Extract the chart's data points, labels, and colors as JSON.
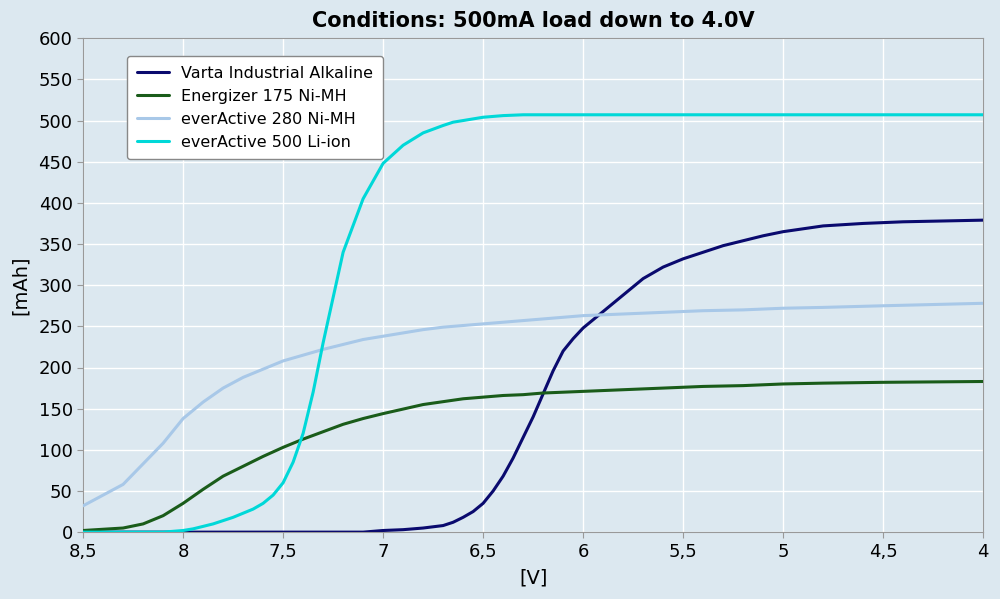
{
  "title": "Conditions: 500mA load down to 4.0V",
  "xlabel": "[V]",
  "ylabel": "[mAh]",
  "xlim": [
    8.5,
    4.0
  ],
  "ylim": [
    0,
    600
  ],
  "yticks": [
    0,
    50,
    100,
    150,
    200,
    250,
    300,
    350,
    400,
    450,
    500,
    550,
    600
  ],
  "xticks": [
    8.5,
    8.0,
    7.5,
    7.0,
    6.5,
    6.0,
    5.5,
    5.0,
    4.5,
    4.0
  ],
  "xtick_labels": [
    "8,5",
    "8",
    "7,5",
    "7",
    "6,5",
    "6",
    "5,5",
    "5",
    "4,5",
    "4"
  ],
  "background_color": "#dce8f0",
  "grid_color": "#ffffff",
  "series": [
    {
      "label": "Varta Industrial Alkaline",
      "color": "#0a0a6e",
      "linewidth": 2.2,
      "x": [
        8.5,
        8.4,
        8.3,
        8.2,
        8.1,
        8.05,
        8.0,
        7.95,
        7.9,
        7.85,
        7.8,
        7.7,
        7.6,
        7.5,
        7.4,
        7.3,
        7.2,
        7.1,
        7.0,
        6.9,
        6.8,
        6.7,
        6.65,
        6.6,
        6.55,
        6.5,
        6.45,
        6.4,
        6.35,
        6.3,
        6.25,
        6.2,
        6.15,
        6.1,
        6.05,
        6.0,
        5.9,
        5.8,
        5.7,
        5.6,
        5.5,
        5.3,
        5.1,
        5.0,
        4.8,
        4.6,
        4.4,
        4.2,
        4.0
      ],
      "y": [
        0,
        0,
        0,
        0,
        0,
        0,
        0,
        0,
        0,
        0,
        0,
        0,
        0,
        0,
        0,
        0,
        0,
        0,
        2,
        3,
        5,
        8,
        12,
        18,
        25,
        35,
        50,
        68,
        90,
        115,
        140,
        168,
        196,
        220,
        235,
        248,
        268,
        288,
        308,
        322,
        332,
        348,
        360,
        365,
        372,
        375,
        377,
        378,
        379
      ]
    },
    {
      "label": "Energizer 175 Ni-MH",
      "color": "#1a5c1a",
      "linewidth": 2.2,
      "x": [
        8.5,
        8.3,
        8.2,
        8.1,
        8.0,
        7.9,
        7.8,
        7.7,
        7.6,
        7.5,
        7.4,
        7.3,
        7.2,
        7.1,
        7.0,
        6.8,
        6.6,
        6.5,
        6.4,
        6.3,
        6.2,
        6.1,
        6.0,
        5.8,
        5.6,
        5.4,
        5.2,
        5.0,
        4.8,
        4.5,
        4.0
      ],
      "y": [
        2,
        5,
        10,
        20,
        35,
        52,
        68,
        80,
        92,
        103,
        113,
        122,
        131,
        138,
        144,
        155,
        162,
        164,
        166,
        167,
        169,
        170,
        171,
        173,
        175,
        177,
        178,
        180,
        181,
        182,
        183
      ]
    },
    {
      "label": "everActive 280 Ni-MH",
      "color": "#a8c8e8",
      "linewidth": 2.2,
      "x": [
        8.5,
        8.3,
        8.1,
        8.0,
        7.9,
        7.8,
        7.7,
        7.6,
        7.5,
        7.4,
        7.3,
        7.2,
        7.1,
        7.0,
        6.9,
        6.8,
        6.7,
        6.6,
        6.5,
        6.4,
        6.3,
        6.2,
        6.1,
        6.0,
        5.8,
        5.6,
        5.4,
        5.2,
        5.0,
        4.8,
        4.5,
        4.0
      ],
      "y": [
        32,
        58,
        108,
        138,
        158,
        175,
        188,
        198,
        208,
        215,
        222,
        228,
        234,
        238,
        242,
        246,
        249,
        251,
        253,
        255,
        257,
        259,
        261,
        263,
        265,
        267,
        269,
        270,
        272,
        273,
        275,
        278
      ]
    },
    {
      "label": "everActive 500 Li-ion",
      "color": "#00d8d8",
      "linewidth": 2.2,
      "x": [
        8.5,
        8.3,
        8.1,
        8.0,
        7.95,
        7.9,
        7.85,
        7.8,
        7.75,
        7.7,
        7.65,
        7.6,
        7.55,
        7.5,
        7.45,
        7.4,
        7.35,
        7.3,
        7.2,
        7.1,
        7.0,
        6.9,
        6.8,
        6.7,
        6.65,
        6.6,
        6.55,
        6.5,
        6.45,
        6.4,
        6.3,
        6.2,
        6.0,
        5.5,
        5.0,
        4.5,
        4.0
      ],
      "y": [
        0,
        0,
        0,
        2,
        4,
        7,
        10,
        14,
        18,
        23,
        28,
        35,
        45,
        60,
        85,
        120,
        170,
        230,
        340,
        405,
        448,
        470,
        485,
        494,
        498,
        500,
        502,
        504,
        505,
        506,
        507,
        507,
        507,
        507,
        507,
        507,
        507
      ]
    }
  ]
}
